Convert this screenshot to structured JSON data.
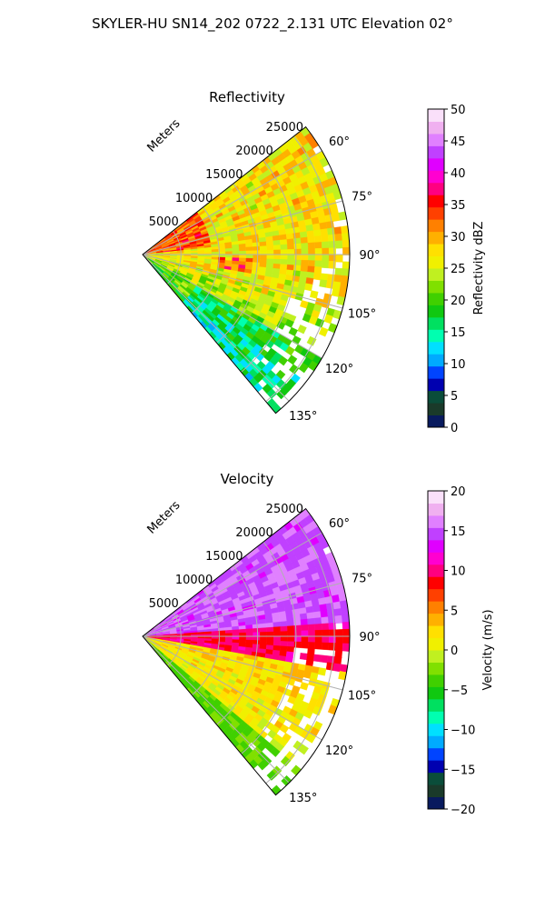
{
  "suptitle": "SKYLER-HU  SN14_202  0722_2.131 UTC Elevation 02°",
  "range_unit_label": "Meters",
  "chart_data": [
    {
      "type": "heatmap",
      "title": "Reflectivity",
      "projection": "polar sector (azimuth × range)",
      "azimuth_ticks": [
        "60°",
        "75°",
        "90°",
        "105°",
        "120°",
        "135°"
      ],
      "azimuth_range_deg": [
        52,
        140
      ],
      "range_ticks": [
        "5000",
        "10000",
        "15000",
        "20000",
        "25000"
      ],
      "range_max_m": 27000,
      "grid": true,
      "colorbar": {
        "label": "Reflectivity dBZ",
        "range": [
          0,
          50
        ],
        "ticks": [
          "0",
          "5",
          "10",
          "15",
          "20",
          "25",
          "30",
          "35",
          "40",
          "45",
          "50"
        ],
        "colors": [
          "#081a5e",
          "#1a3a2a",
          "#0a4d3a",
          "#0000b0",
          "#0044ff",
          "#00aaff",
          "#00e0ff",
          "#00ffb0",
          "#00e060",
          "#10c810",
          "#40d000",
          "#80e000",
          "#c0f020",
          "#f0f000",
          "#ffe000",
          "#ffb000",
          "#ff8000",
          "#ff4000",
          "#ff0000",
          "#ff0080",
          "#ff00d0",
          "#e000ff",
          "#c040ff",
          "#e080ff",
          "#f0b0f0",
          "#fae0fa"
        ]
      },
      "field_summary": "Mostly 20–35 dBZ (yellow/orange) with green 15–22 dBZ toward the southern sector and red 35–40 dBZ cells near the radar and around 95–100°"
    },
    {
      "type": "heatmap",
      "title": "Velocity",
      "projection": "polar sector (azimuth × range)",
      "azimuth_ticks": [
        "60°",
        "75°",
        "90°",
        "105°",
        "120°",
        "135°"
      ],
      "azimuth_range_deg": [
        52,
        140
      ],
      "range_ticks": [
        "5000",
        "10000",
        "15000",
        "20000",
        "25000"
      ],
      "range_max_m": 27000,
      "grid": true,
      "colorbar": {
        "label": "Velocity (m/s)",
        "range": [
          -20,
          20
        ],
        "ticks": [
          "−20",
          "−15",
          "−10",
          "−5",
          "0",
          "5",
          "10",
          "15",
          "20"
        ],
        "colors": [
          "#081a5e",
          "#1a3a2a",
          "#0a4d3a",
          "#0000b0",
          "#0044ff",
          "#00aaff",
          "#00e0ff",
          "#00ffb0",
          "#00e060",
          "#10c810",
          "#40d000",
          "#80e000",
          "#c0f020",
          "#f0f000",
          "#ffe000",
          "#ffb000",
          "#ff8000",
          "#ff4000",
          "#ff0000",
          "#ff0080",
          "#ff00d0",
          "#e000ff",
          "#c040ff",
          "#e080ff",
          "#f0b0f0",
          "#fae0fa"
        ]
      },
      "field_summary": "About 13–17 m/s (magenta/purple) at azimuths 55–85°, 7–12 m/s (red) near 88–100°, 0–5 m/s (yellow/orange) at 100–130°, −2 to −5 m/s (yellow-green) at 130–140°"
    }
  ]
}
